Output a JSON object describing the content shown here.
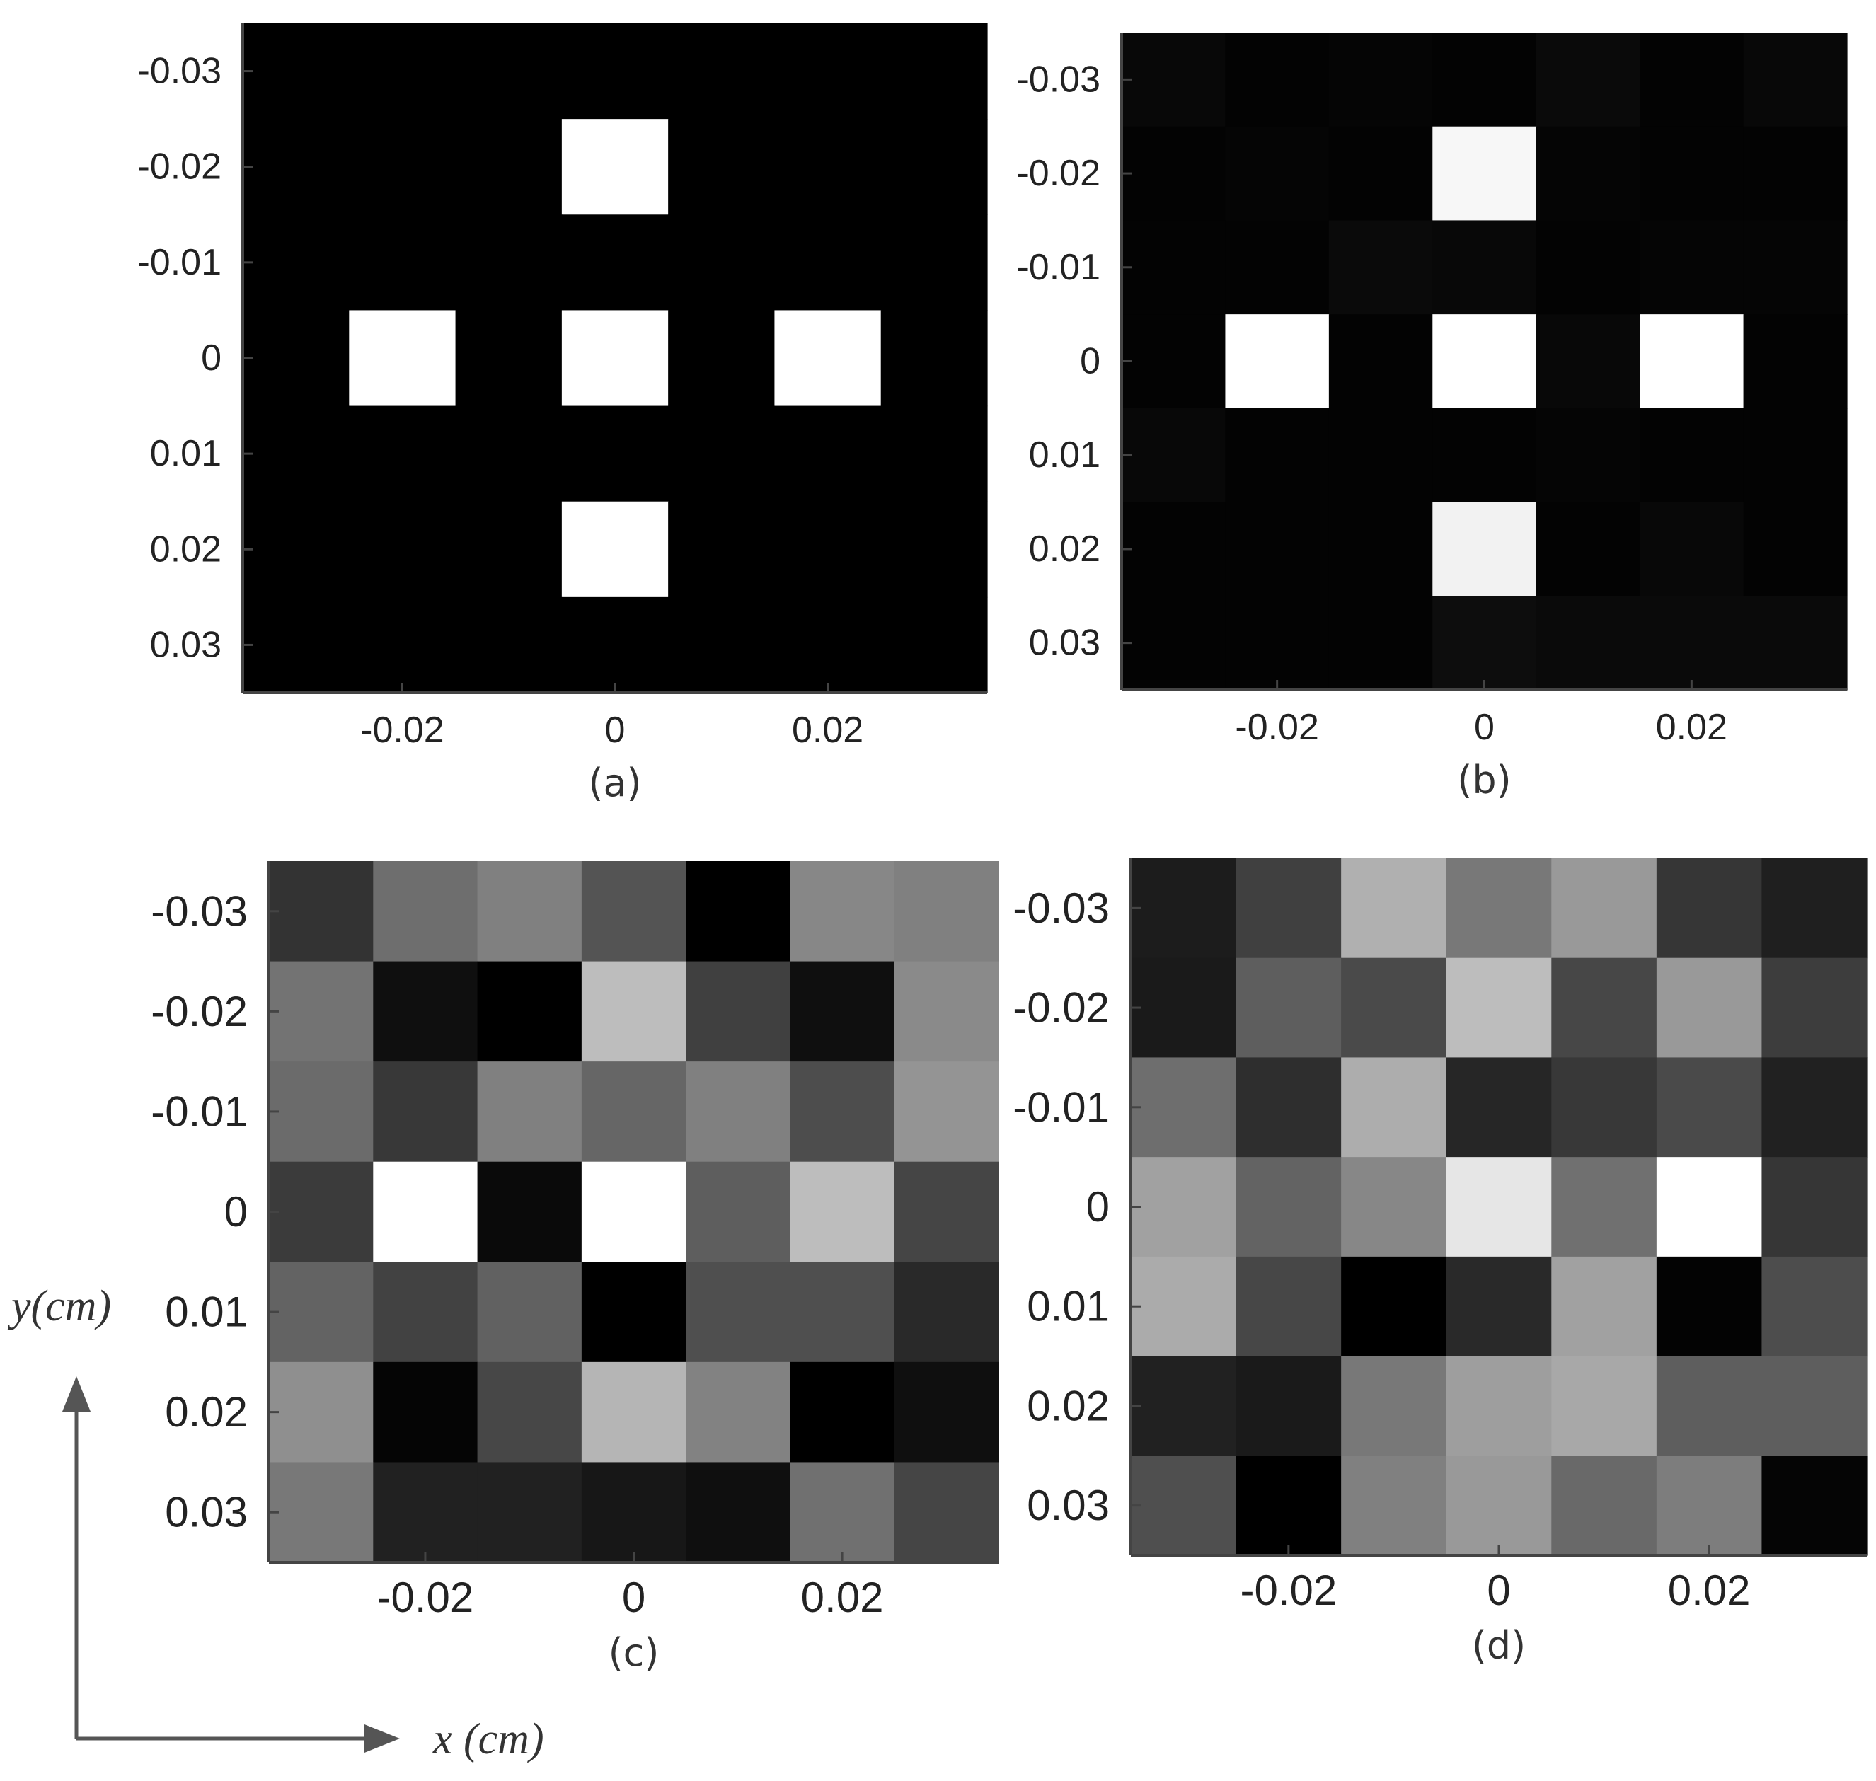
{
  "chart_data": [
    {
      "type": "heatmap",
      "panel": "(a)",
      "x_ticks": [
        "-0.02",
        "0",
        "0.02"
      ],
      "y_ticks": [
        "-0.03",
        "-0.02",
        "-0.01",
        "0",
        "0.01",
        "0.02",
        "0.03"
      ],
      "x": [
        -0.03,
        -0.02,
        -0.01,
        0,
        0.01,
        0.02,
        0.03
      ],
      "y": [
        -0.03,
        -0.02,
        -0.01,
        0,
        0.01,
        0.02,
        0.03
      ],
      "values": [
        [
          0,
          0,
          0,
          0,
          0,
          0,
          0
        ],
        [
          0,
          0,
          0,
          1,
          0,
          0,
          0
        ],
        [
          0,
          0,
          0,
          0,
          0,
          0,
          0
        ],
        [
          0,
          1,
          0,
          1,
          0,
          1,
          0
        ],
        [
          0,
          0,
          0,
          0,
          0,
          0,
          0
        ],
        [
          0,
          0,
          0,
          1,
          0,
          0,
          0
        ],
        [
          0,
          0,
          0,
          0,
          0,
          0,
          0
        ]
      ],
      "colormap": "gray"
    },
    {
      "type": "heatmap",
      "panel": "(b)",
      "x_ticks": [
        "-0.02",
        "0",
        "0.02"
      ],
      "y_ticks": [
        "-0.03",
        "-0.02",
        "-0.01",
        "0",
        "0.01",
        "0.02",
        "0.03"
      ],
      "x": [
        -0.03,
        -0.02,
        -0.01,
        0,
        0.01,
        0.02,
        0.03
      ],
      "y": [
        -0.03,
        -0.02,
        -0.01,
        0,
        0.01,
        0.02,
        0.03
      ],
      "values": [
        [
          0.03,
          0.01,
          0.02,
          0.01,
          0.04,
          0.01,
          0.03
        ],
        [
          0.01,
          0.02,
          0.01,
          0.97,
          0.02,
          0.01,
          0.01
        ],
        [
          0.01,
          0.01,
          0.04,
          0.03,
          0.01,
          0.02,
          0.02
        ],
        [
          0.01,
          1.0,
          0.01,
          1.0,
          0.03,
          1.0,
          0.01
        ],
        [
          0.03,
          0.01,
          0.01,
          0.01,
          0.02,
          0.01,
          0.01
        ],
        [
          0.01,
          0.01,
          0.01,
          0.95,
          0.01,
          0.03,
          0.01
        ],
        [
          0.01,
          0.01,
          0.01,
          0.05,
          0.04,
          0.04,
          0.04
        ]
      ],
      "colormap": "gray"
    },
    {
      "type": "heatmap",
      "panel": "(c)",
      "x_ticks": [
        "-0.02",
        "0",
        "0.02"
      ],
      "y_ticks": [
        "-0.03",
        "-0.02",
        "-0.01",
        "0",
        "0.01",
        "0.02",
        "0.03"
      ],
      "xlabel": "x (cm)",
      "ylabel": "y(cm)",
      "x": [
        -0.03,
        -0.02,
        -0.01,
        0,
        0.01,
        0.02,
        0.03
      ],
      "y": [
        -0.03,
        -0.02,
        -0.01,
        0,
        0.01,
        0.02,
        0.03
      ],
      "values": [
        [
          0.2,
          0.43,
          0.5,
          0.33,
          0.0,
          0.53,
          0.5
        ],
        [
          0.45,
          0.06,
          0.0,
          0.74,
          0.25,
          0.06,
          0.54
        ],
        [
          0.42,
          0.22,
          0.5,
          0.4,
          0.5,
          0.3,
          0.58
        ],
        [
          0.23,
          1.0,
          0.04,
          1.0,
          0.37,
          0.74,
          0.27
        ],
        [
          0.39,
          0.26,
          0.38,
          0.0,
          0.31,
          0.31,
          0.16
        ],
        [
          0.56,
          0.02,
          0.28,
          0.71,
          0.51,
          0.0,
          0.06
        ],
        [
          0.47,
          0.13,
          0.13,
          0.09,
          0.06,
          0.44,
          0.27
        ]
      ],
      "colormap": "gray"
    },
    {
      "type": "heatmap",
      "panel": "(d)",
      "x_ticks": [
        "-0.02",
        "0",
        "0.02"
      ],
      "y_ticks": [
        "-0.03",
        "-0.02",
        "-0.01",
        "0",
        "0.01",
        "0.02",
        "0.03"
      ],
      "x": [
        -0.03,
        -0.02,
        -0.01,
        0,
        0.01,
        0.02,
        0.03
      ],
      "y": [
        -0.03,
        -0.02,
        -0.01,
        0,
        0.01,
        0.02,
        0.03
      ],
      "values": [
        [
          0.11,
          0.25,
          0.69,
          0.47,
          0.6,
          0.21,
          0.12
        ],
        [
          0.1,
          0.37,
          0.29,
          0.74,
          0.28,
          0.6,
          0.24
        ],
        [
          0.43,
          0.18,
          0.68,
          0.15,
          0.22,
          0.29,
          0.13
        ],
        [
          0.63,
          0.39,
          0.53,
          0.9,
          0.44,
          1.0,
          0.21
        ],
        [
          0.67,
          0.28,
          0.0,
          0.16,
          0.63,
          0.01,
          0.3
        ],
        [
          0.13,
          0.1,
          0.47,
          0.62,
          0.66,
          0.37,
          0.37
        ],
        [
          0.31,
          0.0,
          0.5,
          0.6,
          0.41,
          0.49,
          0.02
        ]
      ],
      "colormap": "gray"
    }
  ],
  "arrows_color": "#555555",
  "frame_color": "#444444"
}
